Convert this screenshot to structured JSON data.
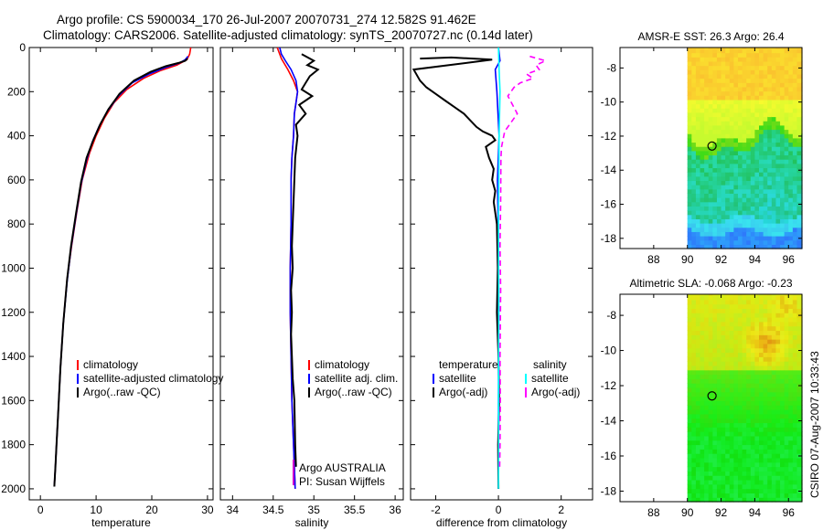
{
  "header": {
    "line1": "Argo profile: CS 5900034_170 26-Jul-2007 20070731_274 12.582S 91.462E",
    "line2": "Climatology: CARS2006. Satellite-adjusted climatology: synTS_20070727.nc (0.14d later)"
  },
  "colors": {
    "climatology": "#ff0000",
    "satellite": "#0000ff",
    "argo": "#000000",
    "sat_salinity": "#00ffff",
    "argo_salinity": "#ff00ff"
  },
  "chart_data": [
    {
      "type": "line",
      "name": "temperature",
      "xlabel": "temperature",
      "xlim": [
        -2,
        31
      ],
      "ylim": [
        2050,
        0
      ],
      "xticks": [
        "0",
        "10",
        "20",
        "30"
      ],
      "yticks": [
        "0",
        "200",
        "400",
        "600",
        "800",
        "1000",
        "1200",
        "1400",
        "1600",
        "1800",
        "2000"
      ],
      "legend": [
        "climatology",
        "satellite-adjusted climatology",
        "Argo(..raw -QC)"
      ],
      "series": [
        {
          "name": "climatology",
          "color": "#ff0000",
          "x": [
            27.0,
            26.8,
            26.3,
            24.5,
            21.5,
            18.5,
            15.5,
            13.2,
            11.5,
            10.0,
            8.8,
            7.5,
            6.5,
            5.6,
            4.8,
            4.1,
            3.6,
            3.2,
            2.9,
            2.7,
            2.5
          ],
          "y": [
            0,
            30,
            55,
            80,
            105,
            140,
            190,
            250,
            320,
            400,
            480,
            600,
            750,
            900,
            1050,
            1250,
            1450,
            1650,
            1800,
            1900,
            1990
          ]
        },
        {
          "name": "satellite-adjusted climatology",
          "color": "#0000ff",
          "x": [
            26.5,
            26.0,
            25.0,
            22.5,
            19.5,
            16.5,
            14.0,
            12.0,
            10.5,
            9.3,
            8.3,
            7.3,
            6.4,
            5.5,
            4.8,
            4.1,
            3.6,
            3.2,
            2.9,
            2.7,
            2.5
          ],
          "y": [
            40,
            55,
            70,
            90,
            120,
            160,
            220,
            290,
            360,
            430,
            510,
            620,
            760,
            910,
            1060,
            1250,
            1450,
            1650,
            1800,
            1900,
            1990
          ]
        },
        {
          "name": "Argo(..raw -QC)",
          "color": "#000000",
          "x": [
            26.4,
            26.0,
            24.8,
            22.5,
            19.8,
            16.8,
            14.2,
            12.2,
            10.7,
            9.5,
            8.3,
            7.3,
            6.4,
            5.5,
            4.8,
            4.1,
            3.6,
            3.2,
            2.9,
            2.7,
            2.5
          ],
          "y": [
            50,
            60,
            70,
            85,
            110,
            150,
            210,
            280,
            350,
            420,
            500,
            610,
            750,
            900,
            1050,
            1250,
            1450,
            1650,
            1800,
            1900,
            1990
          ]
        }
      ]
    },
    {
      "type": "line",
      "name": "salinity",
      "xlabel": "salinity",
      "xlim": [
        33.85,
        36.1
      ],
      "ylim": [
        2050,
        0
      ],
      "xticks": [
        "34",
        "34.5",
        "35",
        "35.5",
        "36"
      ],
      "legend": [
        "climatology",
        "satellite adj. clim.",
        "Argo(..raw -QC)"
      ],
      "annotation": [
        "Argo AUSTRALIA",
        "PI: Susan Wijffels"
      ],
      "series": [
        {
          "name": "climatology",
          "color": "#ff0000",
          "x": [
            34.55,
            34.6,
            34.68,
            34.75,
            34.8,
            34.78,
            34.76,
            34.75,
            34.73,
            34.72,
            34.72,
            34.71,
            34.71,
            34.72,
            34.73,
            34.75,
            34.77
          ],
          "y": [
            0,
            50,
            100,
            150,
            200,
            250,
            300,
            400,
            500,
            600,
            800,
            1000,
            1200,
            1400,
            1600,
            1800,
            2000
          ]
        },
        {
          "name": "satellite adj. clim.",
          "color": "#0000ff",
          "x": [
            34.58,
            34.6,
            34.65,
            34.72,
            34.78,
            34.8,
            34.78,
            34.76,
            34.75,
            34.73,
            34.72,
            34.72,
            34.71,
            34.71,
            34.72,
            34.73,
            34.75,
            34.77
          ],
          "y": [
            0,
            30,
            60,
            100,
            150,
            200,
            250,
            300,
            400,
            500,
            600,
            800,
            1000,
            1200,
            1400,
            1600,
            1800,
            2000
          ]
        },
        {
          "name": "Argo(..raw -QC)",
          "color": "#000000",
          "x": [
            34.85,
            35.0,
            34.92,
            35.05,
            34.95,
            34.9,
            34.85,
            34.98,
            34.82,
            34.9,
            34.78,
            34.8,
            34.77,
            34.76,
            34.75,
            34.74,
            34.73,
            34.74,
            34.72,
            34.73,
            34.72,
            34.73,
            34.74,
            34.76,
            34.77,
            34.78
          ],
          "y": [
            30,
            60,
            80,
            100,
            130,
            160,
            190,
            220,
            260,
            300,
            350,
            400,
            500,
            600,
            700,
            800,
            900,
            1000,
            1100,
            1200,
            1300,
            1400,
            1500,
            1600,
            1800,
            1900
          ]
        }
      ]
    },
    {
      "type": "line",
      "name": "difference",
      "xlabel": "difference from climatology",
      "xlim": [
        -2.8,
        3.0
      ],
      "ylim": [
        2050,
        0
      ],
      "xticks": [
        "-2",
        "0",
        "2"
      ],
      "legend_left": {
        "header": "temperature",
        "items": [
          "satellite",
          "Argo(-adj)"
        ]
      },
      "legend_right": {
        "header": "salinity",
        "items": [
          "satellite",
          "Argo(-adj)"
        ]
      },
      "series": [
        {
          "name": "temperature satellite",
          "color": "#0000ff",
          "x": [
            0.0,
            0.05,
            -0.1,
            -0.05,
            0.02,
            -0.03,
            0.0,
            0.01,
            0.0,
            0.0
          ],
          "y": [
            0,
            60,
            100,
            200,
            400,
            600,
            900,
            1200,
            1600,
            2000
          ]
        },
        {
          "name": "temperature Argo(-adj)",
          "color": "#000000",
          "x": [
            -2.5,
            -1.5,
            -0.2,
            -2.7,
            -2.5,
            -2.3,
            -2.0,
            -1.7,
            -1.4,
            -1.1,
            -0.9,
            -0.7,
            -0.5,
            -0.35,
            -0.2,
            -0.1,
            -0.4,
            -0.3,
            -0.15,
            -0.2,
            -0.1,
            -0.15,
            -0.05,
            -0.02,
            -0.05,
            0.0,
            0.02,
            -0.01,
            0.0
          ],
          "y": [
            50,
            45,
            55,
            100,
            150,
            180,
            210,
            240,
            270,
            300,
            330,
            360,
            380,
            390,
            400,
            420,
            450,
            500,
            550,
            600,
            650,
            700,
            800,
            1000,
            1200,
            1400,
            1600,
            1800,
            2000
          ]
        },
        {
          "name": "salinity satellite",
          "color": "#00ffff",
          "x": [
            0.0,
            0.02,
            0.05,
            0.02,
            0.0,
            0.01,
            0.0,
            0.01,
            0.0
          ],
          "y": [
            0,
            100,
            200,
            400,
            800,
            1200,
            1600,
            1800,
            2000
          ]
        },
        {
          "name": "salinity Argo(-adj)",
          "color": "#ff00ff",
          "x": [
            1.0,
            1.5,
            1.2,
            1.3,
            0.9,
            1.1,
            0.7,
            0.5,
            0.3,
            0.6,
            0.2,
            0.1,
            0.08,
            0.07,
            0.05,
            0.07,
            0.05,
            0.06,
            0.05,
            0.04
          ],
          "y": [
            40,
            60,
            80,
            100,
            120,
            140,
            160,
            180,
            220,
            300,
            380,
            450,
            500,
            700,
            900,
            1100,
            1400,
            1600,
            1800,
            1900
          ]
        }
      ]
    },
    {
      "type": "heatmap",
      "name": "sst-map",
      "title": "AMSR-E SST: 26.3 Argo: 26.4",
      "xlim": [
        86,
        96.8
      ],
      "ylim": [
        -18.6,
        -6.8
      ],
      "xticks": [
        "88",
        "90",
        "92",
        "94",
        "96"
      ],
      "yticks": [
        "-8",
        "-10",
        "-12",
        "-14",
        "-16",
        "-18"
      ],
      "data_lon_min": 90,
      "marker": {
        "lon": 91.462,
        "lat": -12.582
      }
    },
    {
      "type": "heatmap",
      "name": "sla-map",
      "title": "Altimetric SLA: -0.068 Argo: -0.23",
      "xlim": [
        86,
        96.8
      ],
      "ylim": [
        -18.6,
        -6.8
      ],
      "xticks": [
        "88",
        "90",
        "92",
        "94",
        "96"
      ],
      "yticks": [
        "-8",
        "-10",
        "-12",
        "-14",
        "-16",
        "-18"
      ],
      "data_lon_min": 90,
      "marker": {
        "lon": 91.462,
        "lat": -12.582
      }
    }
  ],
  "side_label": "CSIRO 07-Aug-2007 10:33:43"
}
